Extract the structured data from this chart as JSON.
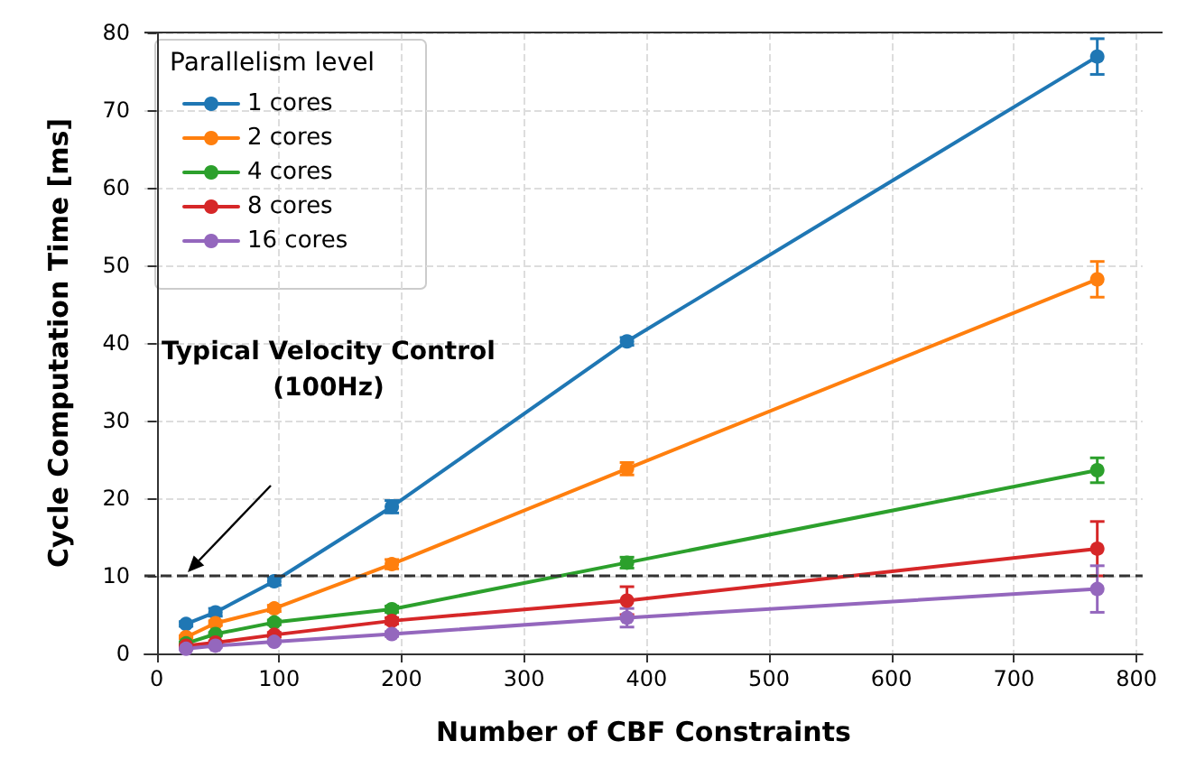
{
  "chart_data": {
    "type": "line",
    "xlabel": "Number of CBF Constraints",
    "ylabel": "Cycle Computation Time [ms]",
    "legend_title": "Parallelism level",
    "x": [
      24,
      48,
      96,
      192,
      384,
      768
    ],
    "series": [
      {
        "name": "1 cores",
        "color": "#1f77b4",
        "values": [
          3.8,
          5.3,
          9.3,
          18.9,
          40.2,
          76.9
        ],
        "errors": [
          0.3,
          0.5,
          0.5,
          0.8,
          0.5,
          2.3
        ]
      },
      {
        "name": "2 cores",
        "color": "#ff7f0e",
        "values": [
          2.1,
          3.9,
          5.8,
          11.5,
          23.8,
          48.2
        ],
        "errors": [
          0.2,
          0.3,
          0.4,
          0.6,
          0.8,
          2.3
        ]
      },
      {
        "name": "4 cores",
        "color": "#2ca02c",
        "values": [
          1.3,
          2.5,
          4.0,
          5.7,
          11.7,
          23.6
        ],
        "errors": [
          0.2,
          0.2,
          0.3,
          0.4,
          0.7,
          1.6
        ]
      },
      {
        "name": "8 cores",
        "color": "#d62728",
        "values": [
          1.0,
          1.4,
          2.4,
          4.2,
          6.8,
          13.5
        ],
        "errors": [
          0.1,
          0.2,
          0.3,
          0.4,
          1.8,
          3.5
        ]
      },
      {
        "name": "16 cores",
        "color": "#9467bd",
        "values": [
          0.6,
          1.0,
          1.5,
          2.5,
          4.6,
          8.3
        ],
        "errors": [
          0.1,
          0.2,
          0.2,
          0.3,
          1.2,
          3.0
        ]
      }
    ],
    "xlim": [
      -10,
      805
    ],
    "xticks": [
      0,
      100,
      200,
      300,
      400,
      500,
      600,
      700,
      800
    ],
    "ylim": [
      0,
      80
    ],
    "yticks": [
      0,
      10,
      20,
      30,
      40,
      50,
      60,
      70,
      80
    ],
    "grid": true,
    "legend": "top left",
    "marker": "circle",
    "line_style": "solid",
    "ref_lines": [
      {
        "axis": "y",
        "value": 10,
        "color": "#333333",
        "line_style": "dashed"
      }
    ],
    "annotations": [
      "Typical Velocity Control\n(100Hz)"
    ]
  }
}
